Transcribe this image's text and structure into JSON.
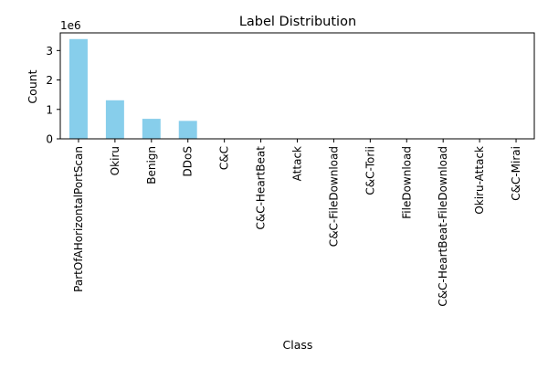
{
  "chart_data": {
    "type": "bar",
    "title": "Label Distribution",
    "xlabel": "Class",
    "ylabel": "Count",
    "y_offset_label": "1e6",
    "ylim": [
      0,
      3.6
    ],
    "yticks": [
      0,
      1,
      2,
      3
    ],
    "categories": [
      "PartOfAHorizontalPortScan",
      "Okiru",
      "Benign",
      "DDoS",
      "C&C",
      "C&C-HeartBeat",
      "Attack",
      "C&C-FileDownload",
      "C&C-Torii",
      "FileDownload",
      "C&C-HeartBeat-FileDownload",
      "Okiru-Attack",
      "C&C-Mirai"
    ],
    "values": [
      3.39,
      1.31,
      0.68,
      0.61,
      0.01,
      0.0,
      0.0,
      0.0,
      0.0,
      0.0,
      0.0,
      0.0,
      0.0
    ],
    "bar_color": "#87CEEB",
    "grid": false
  }
}
